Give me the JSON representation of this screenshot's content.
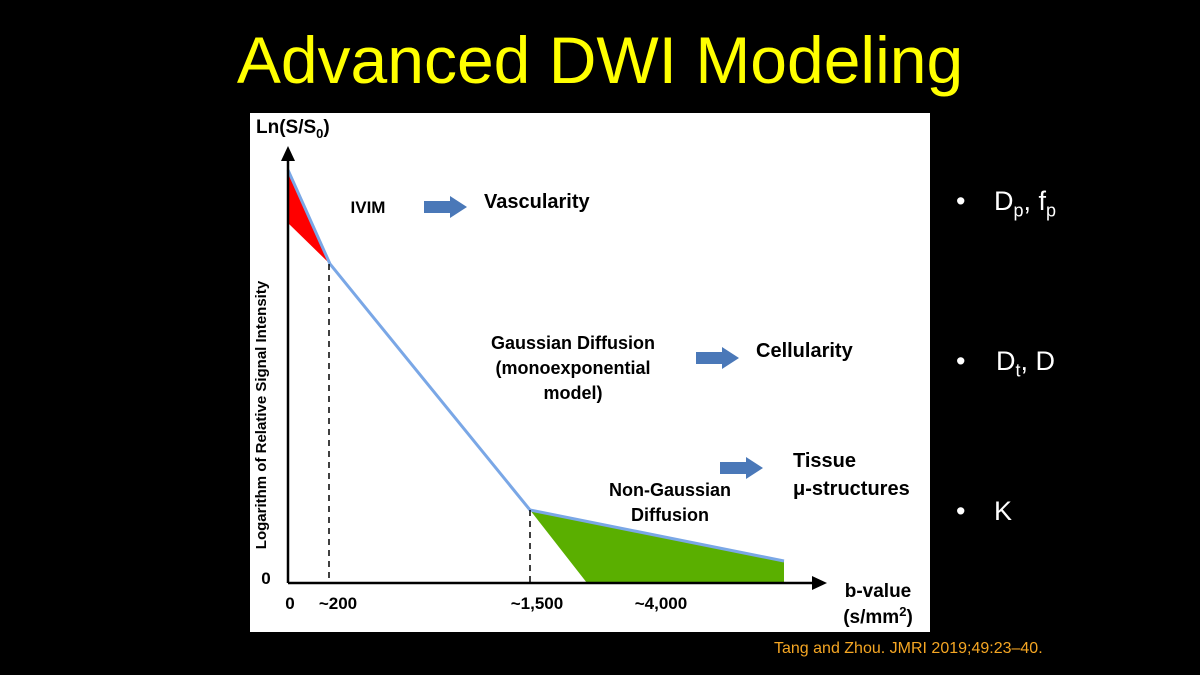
{
  "slide": {
    "title": "Advanced DWI Modeling",
    "citation": "Tang and Zhou. JMRI 2019;49:23–40.",
    "title_color": "#ffff00",
    "citation_color": "#f5a623"
  },
  "diagram": {
    "y_axis_top_label": "Ln(S/S",
    "y_axis_top_sub": "0",
    "y_axis_top_close": ")",
    "y_axis_label": "Logarithm of Relative Signal Intensity",
    "y_zero_label": "0",
    "x_axis_label_line1": "b-value",
    "x_axis_label_line2": "(s/mm",
    "x_axis_label_sup": "2",
    "x_axis_label_close": ")",
    "x_ticks": [
      "0",
      "~200",
      "~1,500",
      "~4,000"
    ],
    "regions": [
      {
        "label_lines": [
          "IVIM"
        ],
        "arrow": "arrow-right-icon",
        "result_lines": [
          "Vascularity"
        ],
        "fill": "#ff0000"
      },
      {
        "label_lines": [
          "Gaussian Diffusion",
          "(monoexponential",
          "model)"
        ],
        "arrow": "arrow-right-icon",
        "result_lines": [
          "Cellularity"
        ]
      },
      {
        "label_lines": [
          "Non-Gaussian",
          "Diffusion"
        ],
        "arrow": "arrow-right-icon",
        "result_lines": [
          "Tissue",
          "μ-structures"
        ],
        "fill": "#5aaf00"
      }
    ],
    "curve_color": "#7aa7e6",
    "arrow_color": "#4a78b8"
  },
  "bullets": [
    {
      "symbol": "•",
      "main": "D",
      "sub": "p",
      "mid": ", f",
      "sub2": "p"
    },
    {
      "symbol": "•",
      "main": "D",
      "sub": "t",
      "mid": ", D",
      "sub2": ""
    },
    {
      "symbol": "•",
      "main": "K",
      "sub": "",
      "mid": "",
      "sub2": ""
    }
  ]
}
